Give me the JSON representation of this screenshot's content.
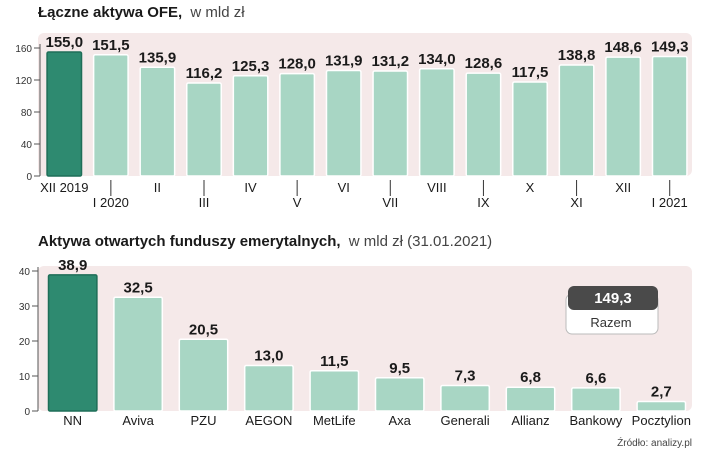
{
  "chart_data": [
    {
      "type": "bar",
      "title": "Łączne aktywa OFE,",
      "subtitle": "w mld zł",
      "categories": [
        "XII 2019",
        "I 2020",
        "II",
        "III",
        "IV",
        "V",
        "VI",
        "VII",
        "VIII",
        "IX",
        "X",
        "XI",
        "XII",
        "I 2021"
      ],
      "values": [
        155.0,
        151.5,
        135.9,
        116.2,
        125.3,
        128.0,
        131.9,
        131.2,
        134.0,
        128.6,
        117.5,
        138.8,
        148.6,
        149.3
      ],
      "value_labels": [
        "155,0",
        "151,5",
        "135,9",
        "116,2",
        "125,3",
        "128,0",
        "131,9",
        "131,2",
        "134,0",
        "128,6",
        "117,5",
        "138,8",
        "148,6",
        "149,3"
      ],
      "yticks": [
        "0",
        "40",
        "80",
        "120",
        "160"
      ],
      "ylim": [
        0,
        160
      ],
      "highlight_index": 0,
      "colors": {
        "bar": "#a8d6c4",
        "highlight": "#2e8a70",
        "background": "#f5e9e9"
      }
    },
    {
      "type": "bar",
      "title": "Aktywa otwartych funduszy emerytalnych,",
      "subtitle": "w mld zł (31.01.2021)",
      "categories": [
        "NN",
        "Aviva",
        "PZU",
        "AEGON",
        "MetLife",
        "Axa",
        "Generali",
        "Allianz",
        "Bankowy",
        "Pocztylion"
      ],
      "values": [
        38.9,
        32.5,
        20.5,
        13.0,
        11.5,
        9.5,
        7.3,
        6.8,
        6.6,
        2.7
      ],
      "value_labels": [
        "38,9",
        "32,5",
        "20,5",
        "13,0",
        "11,5",
        "9,5",
        "7,3",
        "6,8",
        "6,6",
        "2,7"
      ],
      "yticks": [
        "0",
        "10",
        "20",
        "30",
        "40"
      ],
      "ylim": [
        0,
        40
      ],
      "highlight_index": 0,
      "total": {
        "value": "149,3",
        "label": "Razem"
      },
      "colors": {
        "bar": "#a8d6c4",
        "highlight": "#2e8a70",
        "background": "#f5e9e9"
      }
    }
  ],
  "source": "Źródło: analizy.pl"
}
